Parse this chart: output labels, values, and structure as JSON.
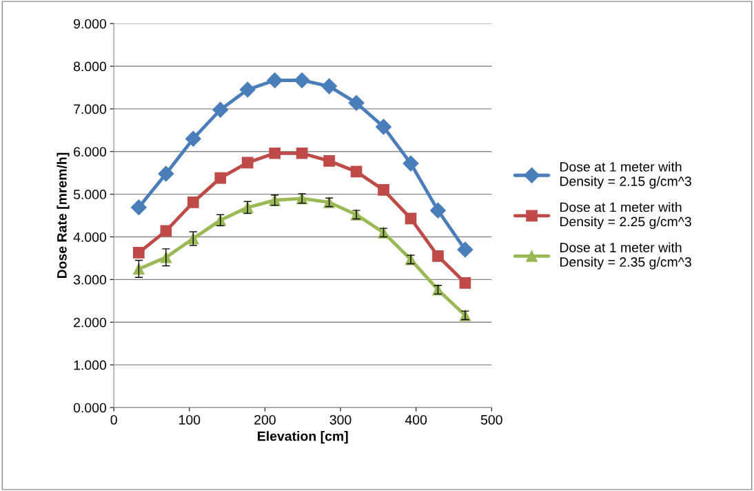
{
  "chart_data": {
    "type": "line",
    "xlabel": "Elevation [cm]",
    "ylabel": "Dose Rate [mrem/h]",
    "x": [
      33,
      69,
      105,
      141,
      177,
      213,
      249,
      285,
      321,
      357,
      393,
      429,
      465
    ],
    "xlim": [
      0,
      500
    ],
    "xticks": [
      0,
      100,
      200,
      300,
      400,
      500
    ],
    "ylim": [
      0,
      9
    ],
    "yticks": [
      {
        "value": 0,
        "label": "0.000"
      },
      {
        "value": 1,
        "label": "1.000"
      },
      {
        "value": 2,
        "label": "2.000"
      },
      {
        "value": 3,
        "label": "3.000"
      },
      {
        "value": 4,
        "label": "4.000"
      },
      {
        "value": 5,
        "label": "5.000"
      },
      {
        "value": 6,
        "label": "6.000"
      },
      {
        "value": 7,
        "label": "7.000"
      },
      {
        "value": 8,
        "label": "8.000"
      },
      {
        "value": 9,
        "label": "9.000"
      }
    ],
    "grid": "y",
    "legend": "right",
    "series": [
      {
        "name": "Dose at 1 meter with\nDensity = 2.15 g/cm^3",
        "color": "#4a7ebb",
        "marker": "diamond",
        "values": [
          4.69,
          5.48,
          6.3,
          6.98,
          7.45,
          7.67,
          7.67,
          7.53,
          7.14,
          6.58,
          5.72,
          4.62,
          3.7
        ]
      },
      {
        "name": "Dose at 1 meter with\nDensity = 2.25 g/cm^3",
        "color": "#be4b48",
        "marker": "square",
        "values": [
          3.63,
          4.14,
          4.81,
          5.38,
          5.74,
          5.96,
          5.96,
          5.78,
          5.53,
          5.1,
          4.43,
          3.55,
          2.92
        ]
      },
      {
        "name": "Dose at 1 meter with\nDensity = 2.35 g/cm^3",
        "color": "#98b954",
        "marker": "triangle",
        "values": [
          3.25,
          3.52,
          3.96,
          4.39,
          4.69,
          4.86,
          4.9,
          4.81,
          4.52,
          4.1,
          3.47,
          2.76,
          2.16
        ],
        "errors": [
          0.2,
          0.2,
          0.16,
          0.13,
          0.14,
          0.12,
          0.11,
          0.1,
          0.1,
          0.1,
          0.1,
          0.1,
          0.1
        ]
      }
    ]
  }
}
